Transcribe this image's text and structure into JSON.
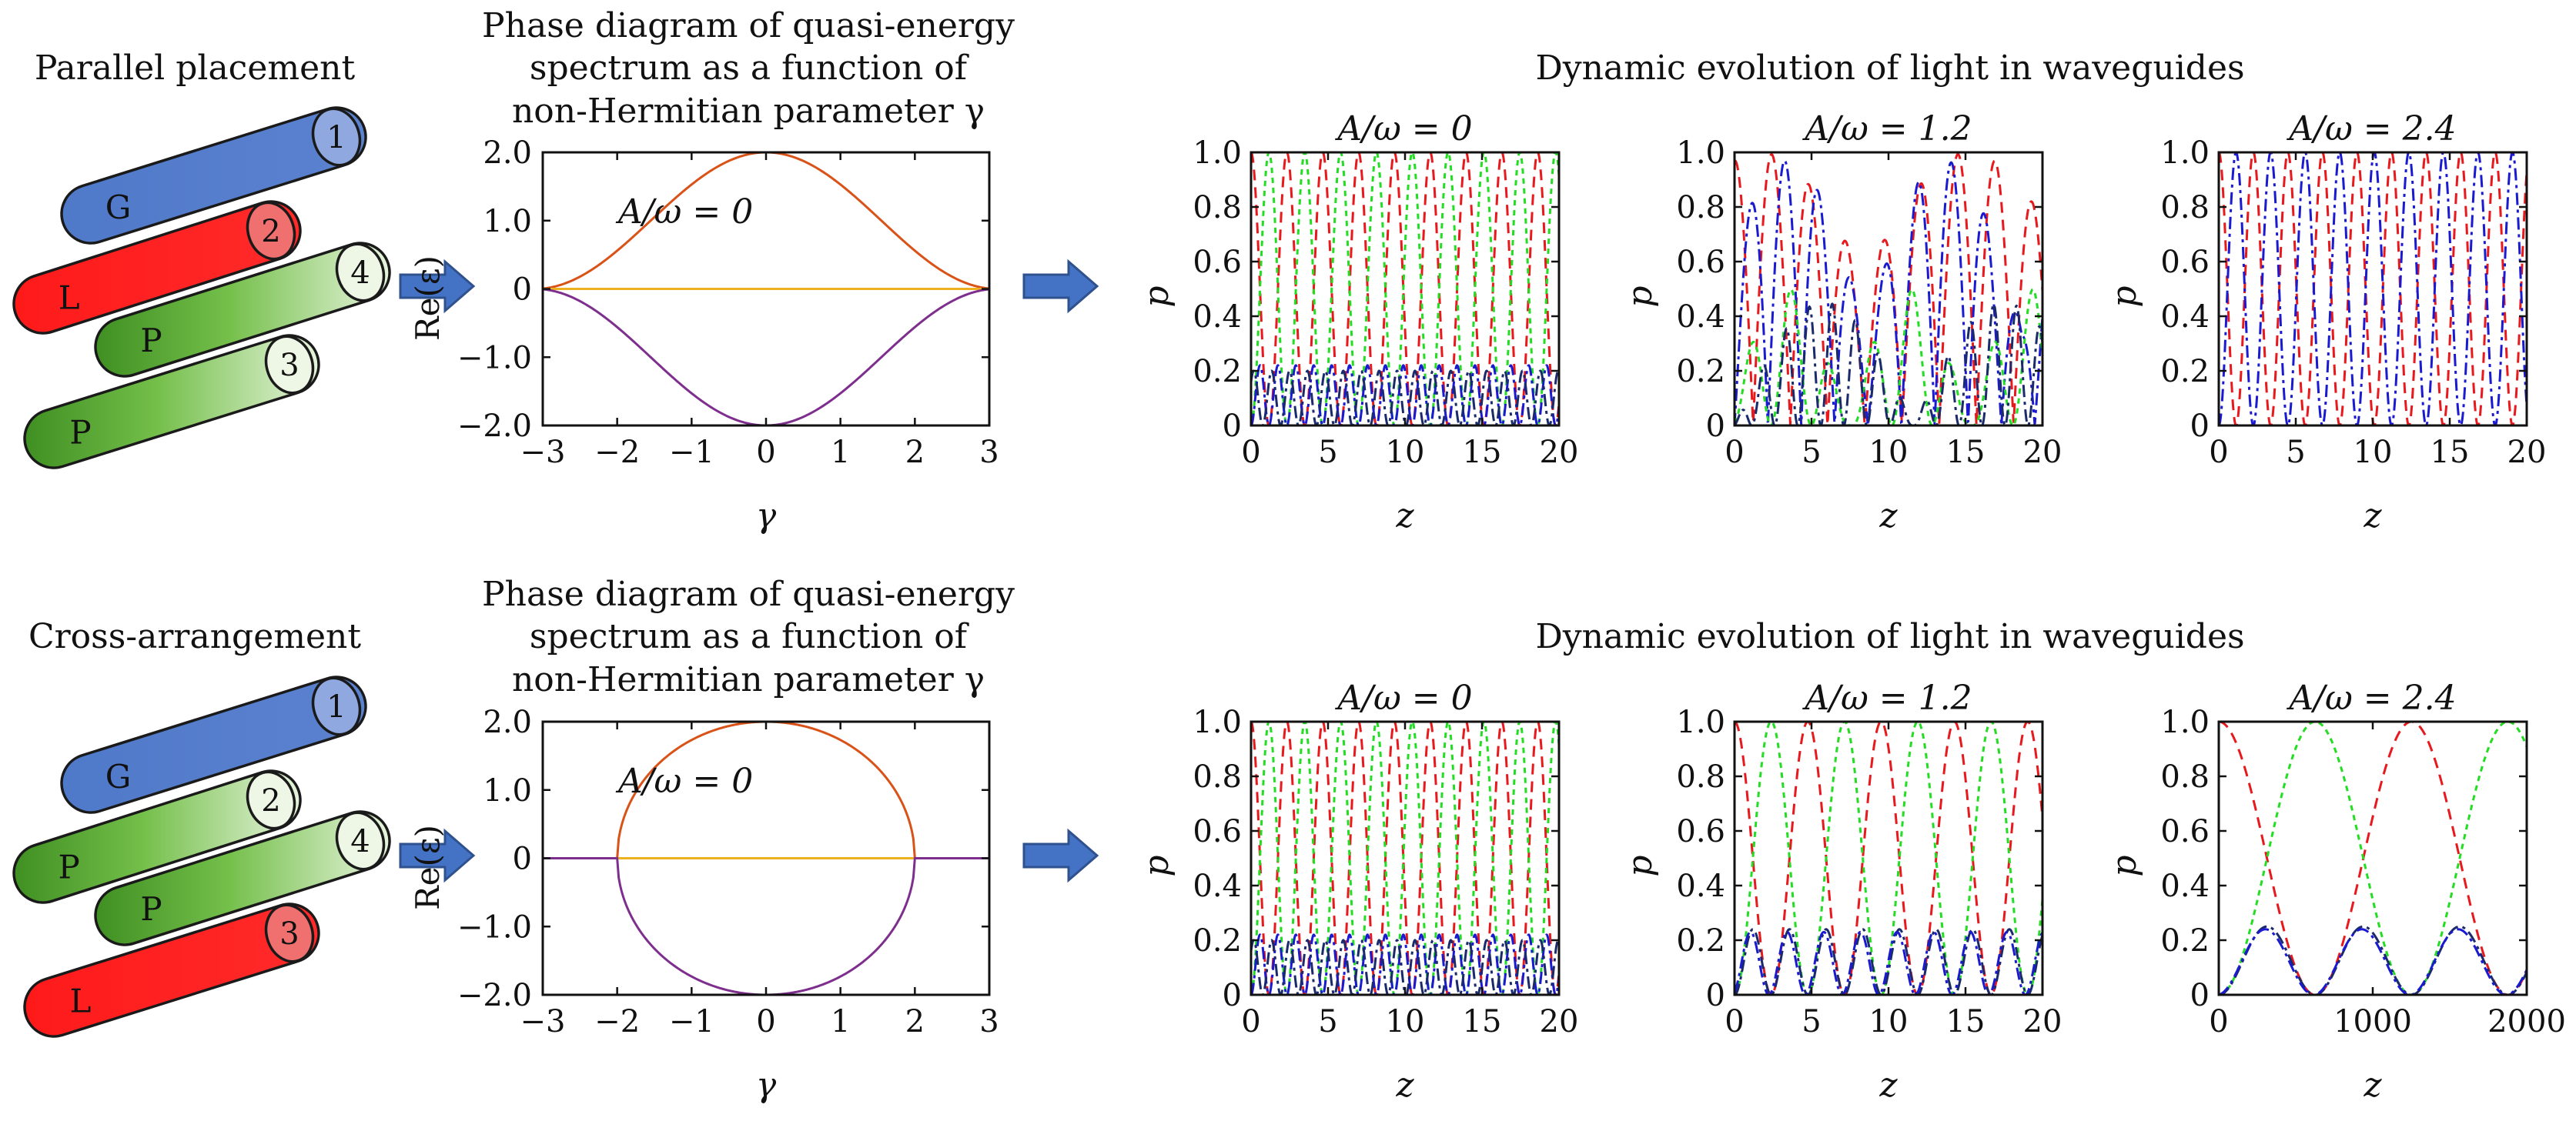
{
  "rows": [
    {
      "arrangement_label": "Parallel placement",
      "waveguides": [
        {
          "type": "G",
          "number": "1",
          "color": "#4f79c9"
        },
        {
          "type": "L",
          "number": "2",
          "color": "#ff1a1a"
        },
        {
          "type": "P",
          "number": "4",
          "color": "#6cb447"
        },
        {
          "type": "P",
          "number": "3",
          "color": "#6cb447"
        }
      ],
      "spectrum": {
        "title_lines": [
          "Phase diagram of quasi-energy",
          "spectrum as a function of",
          "non-Hermitian parameter γ"
        ],
        "annotation": "A/ω = 0",
        "ylabel": "Re(ε)",
        "xlabel": "γ",
        "xlim": [
          -3,
          3
        ],
        "ylim": [
          -2,
          2
        ],
        "xticks": [
          "−3",
          "−2",
          "−1",
          "0",
          "1",
          "2",
          "3"
        ],
        "yticks": [
          "−2.0",
          "−1.0",
          "0",
          "1.0",
          "2.0"
        ],
        "model": "parallel"
      },
      "evolution_title": "Dynamic evolution of light in waveguides",
      "evolution": [
        {
          "title": "A/ω = 0",
          "xlim": [
            0,
            20
          ],
          "xticks": [
            "0",
            "5",
            "10",
            "15",
            "20"
          ],
          "model": "p0"
        },
        {
          "title": "A/ω = 1.2",
          "xlim": [
            0,
            20
          ],
          "xticks": [
            "0",
            "5",
            "10",
            "15",
            "20"
          ],
          "model": "p12"
        },
        {
          "title": "A/ω = 2.4",
          "xlim": [
            0,
            20
          ],
          "xticks": [
            "0",
            "5",
            "10",
            "15",
            "20"
          ],
          "model": "p24"
        }
      ]
    },
    {
      "arrangement_label": "Cross-arrangement",
      "waveguides": [
        {
          "type": "G",
          "number": "1",
          "color": "#4f79c9"
        },
        {
          "type": "P",
          "number": "2",
          "color": "#6cb447"
        },
        {
          "type": "P",
          "number": "4",
          "color": "#6cb447"
        },
        {
          "type": "L",
          "number": "3",
          "color": "#ff1a1a"
        }
      ],
      "spectrum": {
        "title_lines": [
          "Phase diagram of quasi-energy",
          "spectrum as a function of",
          "non-Hermitian parameter γ"
        ],
        "annotation": "A/ω = 0",
        "ylabel": "Re(ε)",
        "xlabel": "γ",
        "xlim": [
          -3,
          3
        ],
        "ylim": [
          -2,
          2
        ],
        "xticks": [
          "−3",
          "−2",
          "−1",
          "0",
          "1",
          "2",
          "3"
        ],
        "yticks": [
          "−2.0",
          "−1.0",
          "0",
          "1.0",
          "2.0"
        ],
        "model": "cross"
      },
      "evolution_title": "Dynamic evolution of light in waveguides",
      "evolution": [
        {
          "title": "A/ω = 0",
          "xlim": [
            0,
            20
          ],
          "xticks": [
            "0",
            "5",
            "10",
            "15",
            "20"
          ],
          "model": "c0"
        },
        {
          "title": "A/ω = 1.2",
          "xlim": [
            0,
            20
          ],
          "xticks": [
            "0",
            "5",
            "10",
            "15",
            "20"
          ],
          "model": "c12"
        },
        {
          "title": "A/ω = 2.4",
          "xlim": [
            0,
            2000
          ],
          "xticks": [
            "0",
            "1000",
            "2000"
          ],
          "model": "c24"
        }
      ]
    }
  ],
  "evolution_axes": {
    "ylabel": "p",
    "xlabel": "z",
    "ylim": [
      0,
      1
    ],
    "yticks": [
      "0",
      "0.2",
      "0.4",
      "0.6",
      "0.8",
      "1.0"
    ]
  },
  "colors": {
    "curve_top": "#d95319",
    "curve_mid": "#edb120",
    "curve_bottom": "#7e2f8e",
    "waveguide_red": "#e8191c",
    "waveguide_green": "#22dd22",
    "waveguide_blue": "#1a1ad0",
    "waveguide_navy": "#1a2a6a",
    "arrow_fill": "#4472c4",
    "arrow_stroke": "#2f528f"
  }
}
